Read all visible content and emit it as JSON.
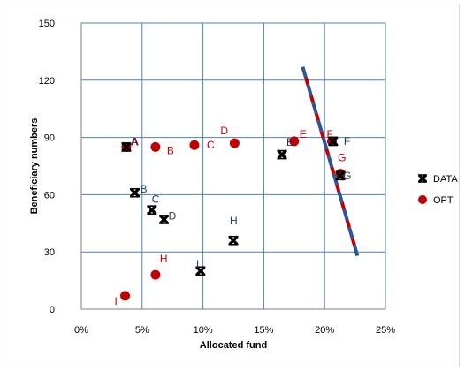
{
  "chart_data": {
    "type": "scatter",
    "title": "",
    "xlabel": "Allocated fund",
    "ylabel": "Beneficiary numbers",
    "xlim": [
      0,
      25
    ],
    "ylim": [
      0,
      150
    ],
    "x_ticks": [
      0,
      5,
      10,
      15,
      20,
      25
    ],
    "x_tick_labels": [
      "0%",
      "5%",
      "10%",
      "15%",
      "20%",
      "25%"
    ],
    "y_ticks": [
      0,
      30,
      60,
      90,
      120,
      150
    ],
    "y_tick_labels": [
      "0",
      "30",
      "60",
      "90",
      "120",
      "150"
    ],
    "grid": true,
    "legend_position": "right",
    "colors": {
      "data_marker": "#000000",
      "data_label": "#1f3864",
      "opt_marker": "#c00000",
      "opt_label": "#c00000",
      "grid": "#4f81bd",
      "frontier_blue": "#2e5597",
      "frontier_red": "#c00000"
    },
    "series": [
      {
        "name": "DATA",
        "marker": "x",
        "points": [
          {
            "label": "A",
            "x": 3.7,
            "y": 85
          },
          {
            "label": "B",
            "x": 4.4,
            "y": 61
          },
          {
            "label": "C",
            "x": 5.8,
            "y": 52
          },
          {
            "label": "D",
            "x": 6.8,
            "y": 47
          },
          {
            "label": "E",
            "x": 16.5,
            "y": 81
          },
          {
            "label": "F",
            "x": 20.7,
            "y": 88
          },
          {
            "label": "G",
            "x": 21.3,
            "y": 70
          },
          {
            "label": "H",
            "x": 12.5,
            "y": 36
          },
          {
            "label": "I",
            "x": 9.8,
            "y": 20
          }
        ]
      },
      {
        "name": "OPT",
        "marker": "circle",
        "points": [
          {
            "label": "A",
            "x": 3.7,
            "y": 85
          },
          {
            "label": "B",
            "x": 6.1,
            "y": 85
          },
          {
            "label": "C",
            "x": 9.3,
            "y": 86
          },
          {
            "label": "D",
            "x": 12.6,
            "y": 87
          },
          {
            "label": "E",
            "x": 17.5,
            "y": 88
          },
          {
            "label": "F",
            "x": 20.6,
            "y": 88
          },
          {
            "label": "G",
            "x": 21.3,
            "y": 71
          },
          {
            "label": "H",
            "x": 6.1,
            "y": 18
          },
          {
            "label": "I",
            "x": 3.6,
            "y": 7
          }
        ]
      }
    ],
    "frontier": {
      "x": [
        18.2,
        22.7
      ],
      "y": [
        127,
        28
      ]
    }
  }
}
